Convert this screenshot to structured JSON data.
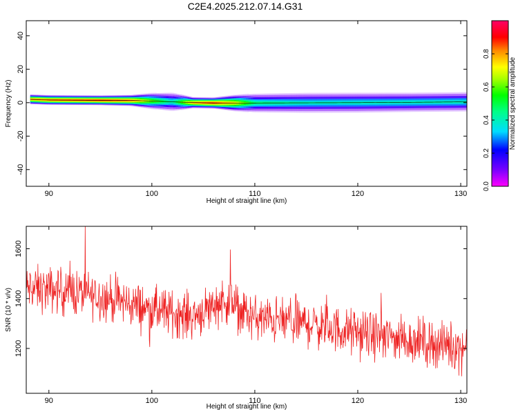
{
  "title": "C2E4.2025.212.07.14.G31",
  "chart_data": [
    {
      "type": "heatmap",
      "xlabel": "Height of straight line (km)",
      "ylabel": "Frequency (Hz)",
      "xlim": [
        87.8,
        130.6
      ],
      "ylim": [
        -50,
        49
      ],
      "xticks": [
        90,
        100,
        110,
        120,
        130
      ],
      "yticks": [
        -40,
        -20,
        0,
        20,
        40
      ],
      "colorbar": {
        "label": "Normalized spectral amplitude",
        "range": [
          0.0,
          1.0
        ],
        "ticks": [
          0.0,
          0.2,
          0.4,
          0.6,
          0.8
        ],
        "tick_labels": [
          "0.0",
          "0.2",
          "0.4",
          "0.6",
          "0.8"
        ]
      },
      "ridge": {
        "x": [
          88.2,
          90,
          95,
          98,
          100,
          102,
          104,
          106,
          108,
          110,
          115,
          120,
          125,
          130.6
        ],
        "frequency": [
          2.0,
          1.6,
          1.4,
          1.3,
          1.0,
          0.5,
          0.0,
          -0.2,
          -0.2,
          -0.2,
          -0.1,
          0.0,
          0.2,
          0.5
        ],
        "amplitude": [
          0.85,
          0.9,
          0.95,
          0.9,
          0.65,
          0.45,
          0.85,
          0.95,
          0.8,
          0.5,
          0.45,
          0.45,
          0.45,
          0.45
        ],
        "spread_hz": [
          2.6,
          2.6,
          2.6,
          3.0,
          4.5,
          5.5,
          3.0,
          3.0,
          4.5,
          5.5,
          6.0,
          6.0,
          5.8,
          5.8
        ]
      }
    },
    {
      "type": "line",
      "xlabel": "Height of straight line (km)",
      "ylabel": "SNR (10 * v/v)",
      "xlim": [
        87.8,
        130.6
      ],
      "ylim": [
        1020,
        1690
      ],
      "xticks": [
        90,
        100,
        110,
        120,
        130
      ],
      "yticks": [
        1200,
        1400,
        1600
      ],
      "line_color": "#ee2222",
      "trend": {
        "x": [
          88,
          92,
          96,
          100,
          104,
          107,
          110,
          115,
          120,
          125,
          130.6
        ],
        "y": [
          1440,
          1430,
          1400,
          1355,
          1330,
          1395,
          1320,
          1300,
          1260,
          1235,
          1200
        ]
      },
      "noise_amplitude": 70,
      "sample_count": 1100
    }
  ]
}
